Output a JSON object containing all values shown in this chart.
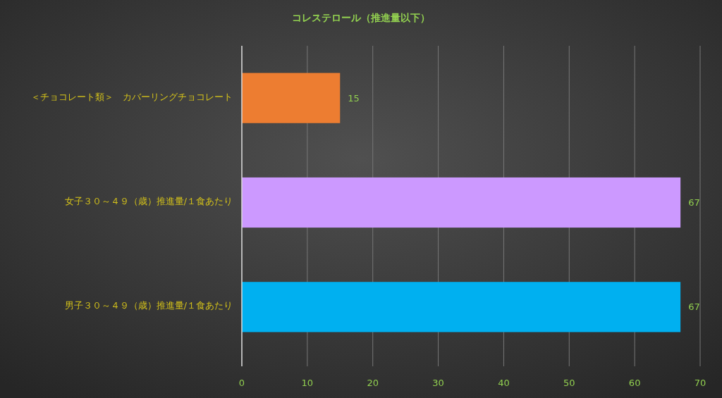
{
  "chart_data": {
    "type": "bar",
    "orientation": "horizontal",
    "title": "コレステロール（推進量以下）",
    "categories": [
      "＜チョコレート類＞　カバーリングチョコレート",
      "女子３０～４９（歳）推進量/１食あたり",
      "男子３０～４９（歳）推進量/１食あたり"
    ],
    "values": [
      15,
      67,
      67
    ],
    "colors": [
      "#ed7d31",
      "#cc99ff",
      "#00b0f0"
    ],
    "xlim": [
      0,
      70
    ],
    "xticks": [
      0,
      10,
      20,
      30,
      40,
      50,
      60,
      70
    ],
    "grid": "x",
    "data_labels": true
  }
}
